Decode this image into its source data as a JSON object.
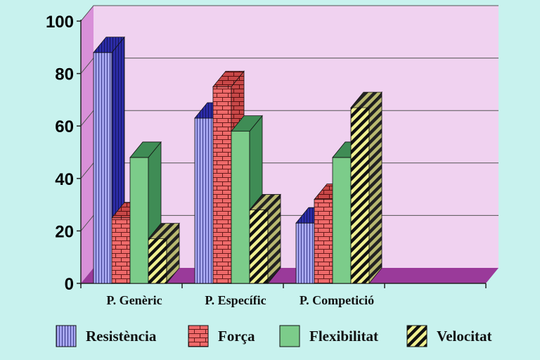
{
  "chart_data": {
    "type": "bar",
    "style": "3d-clustered",
    "categories": [
      "P. Genèric",
      "P. Específic",
      "P. Competició"
    ],
    "series": [
      {
        "name": "Resistència",
        "values": [
          88,
          63,
          23
        ],
        "color": "#a6a6f0",
        "side_color": "#2c2ca6",
        "pattern": "vertical-stripes"
      },
      {
        "name": "Força",
        "values": [
          25,
          75,
          32
        ],
        "color": "#ee6a6a",
        "side_color": "#c84848",
        "pattern": "bricks"
      },
      {
        "name": "Flexibilitat",
        "values": [
          48,
          58,
          48
        ],
        "color": "#7ccc8a",
        "side_color": "#3f8c55",
        "pattern": "solid"
      },
      {
        "name": "Velocitat",
        "values": [
          17,
          28,
          67
        ],
        "color": "#f0f090",
        "side_color": "#a8a860",
        "pattern": "diagonal-stripes"
      }
    ],
    "y_ticks": [
      "0",
      "20",
      "40",
      "60",
      "80",
      "100"
    ],
    "ylim": [
      0,
      100
    ],
    "grid": true,
    "legend_position": "bottom",
    "colors": {
      "background": "#c8f2ee",
      "back_wall": "#f0d2f0",
      "side_wall": "#d890d8",
      "floor": "#9a3a9a",
      "gridline": "#555555"
    }
  }
}
